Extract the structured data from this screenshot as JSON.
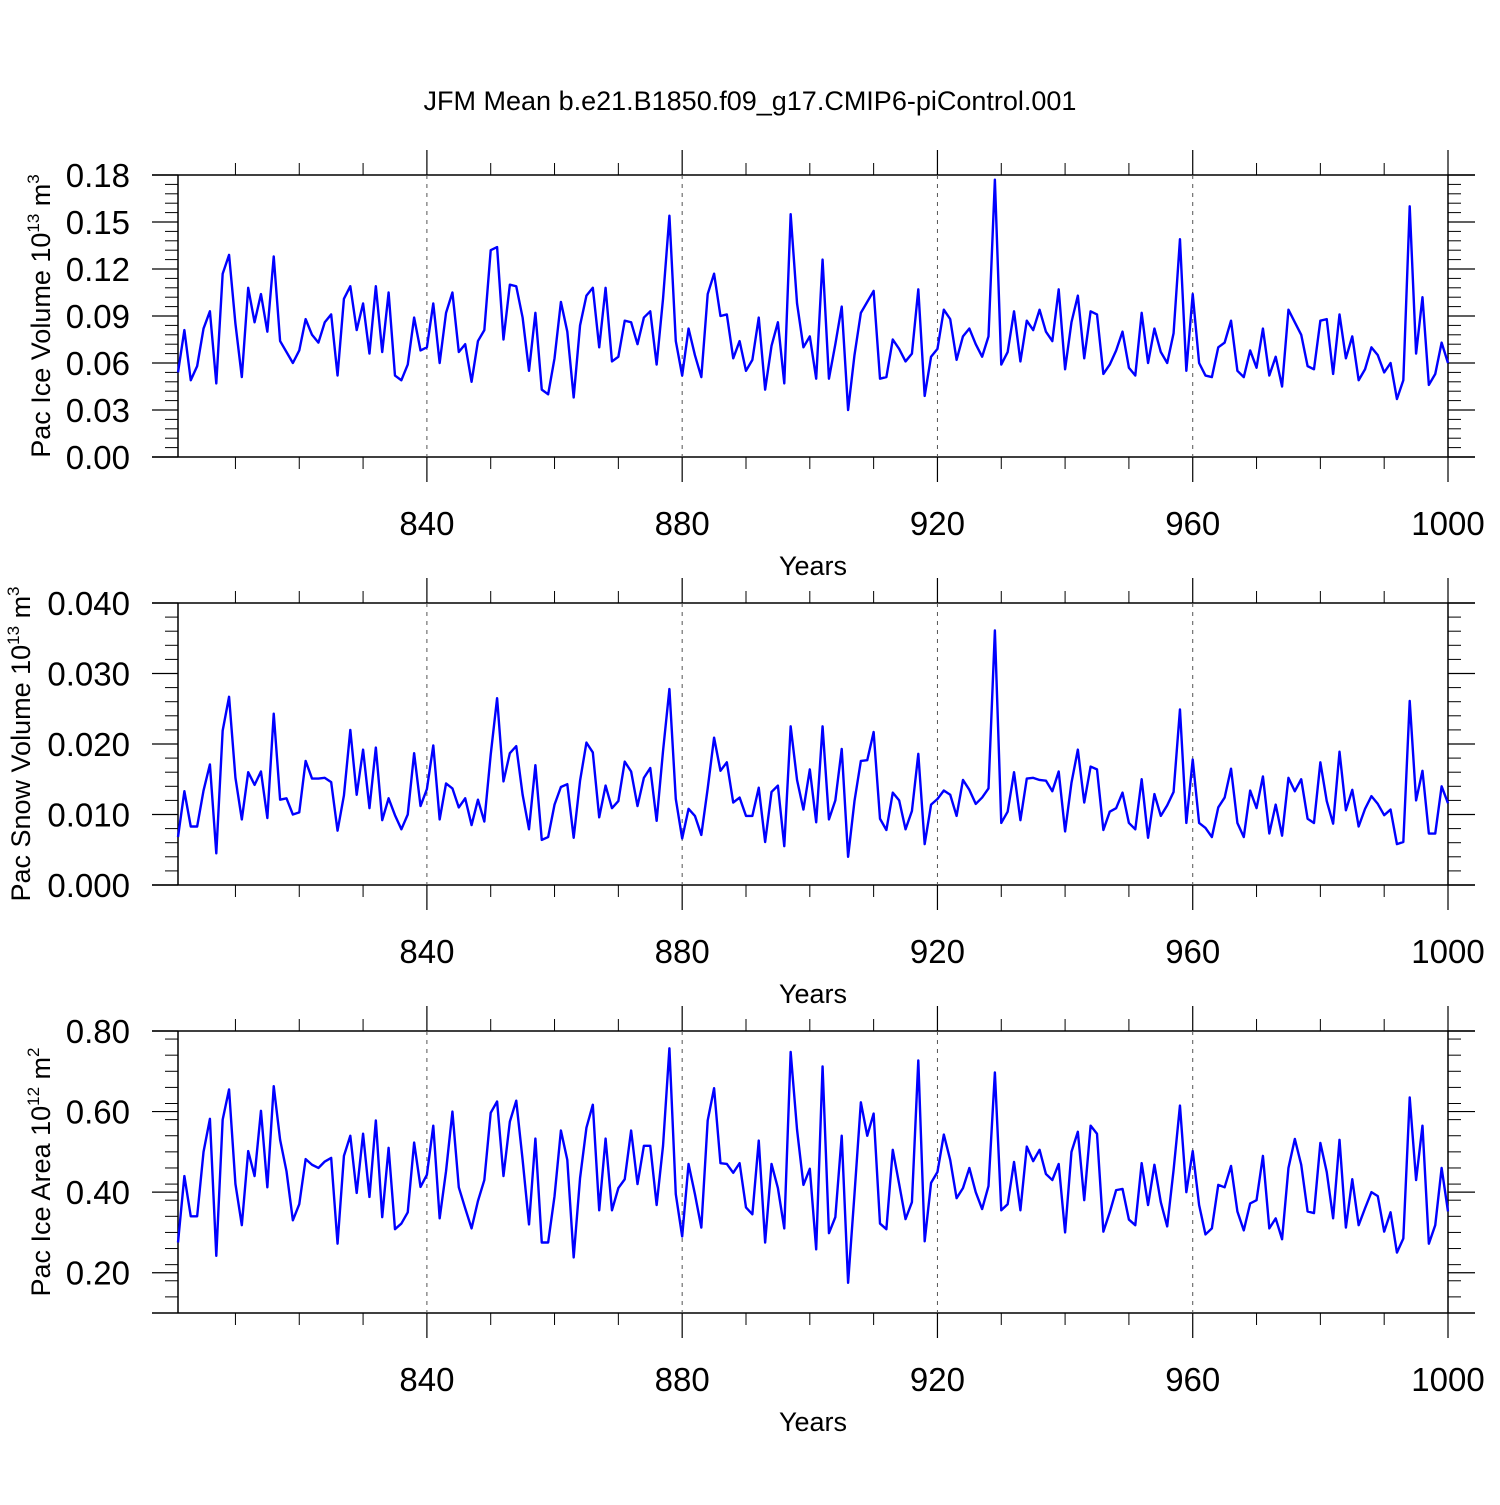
{
  "title": "JFM Mean b.e21.B1850.f09_g17.CMIP6-piControl.001",
  "chart_data": [
    {
      "type": "line",
      "title": "JFM Mean b.e21.B1850.f09_g17.CMIP6-piControl.001",
      "xlabel": "Years",
      "ylabel": "Pac Ice Volume 10",
      "ylabel_exp": "13",
      "ylabel_unit": " m",
      "ylabel_unit_exp": "3",
      "xlim": [
        801,
        1000
      ],
      "ylim": [
        0.0,
        0.18
      ],
      "xticks": [
        840,
        880,
        920,
        960,
        1000
      ],
      "xtick_labels": [
        "840",
        "880",
        "920",
        "960",
        "1000"
      ],
      "yticks": [
        0.0,
        0.03,
        0.06,
        0.09,
        0.12,
        0.15,
        0.18
      ],
      "ytick_labels": [
        "0.00",
        "0.03",
        "0.06",
        "0.09",
        "0.12",
        "0.15",
        "0.18"
      ],
      "color": "#0000ff",
      "grid": "vertical dashed lines at major x ticks",
      "x_start": 801,
      "values": [
        0.054,
        0.081,
        0.049,
        0.058,
        0.082,
        0.093,
        0.047,
        0.117,
        0.129,
        0.085,
        0.051,
        0.108,
        0.086,
        0.104,
        0.08,
        0.128,
        0.074,
        0.067,
        0.06,
        0.068,
        0.088,
        0.078,
        0.073,
        0.086,
        0.091,
        0.052,
        0.101,
        0.109,
        0.081,
        0.098,
        0.066,
        0.109,
        0.067,
        0.105,
        0.052,
        0.049,
        0.059,
        0.089,
        0.068,
        0.07,
        0.098,
        0.06,
        0.092,
        0.105,
        0.067,
        0.072,
        0.048,
        0.074,
        0.081,
        0.132,
        0.134,
        0.075,
        0.11,
        0.109,
        0.089,
        0.055,
        0.092,
        0.043,
        0.04,
        0.063,
        0.099,
        0.08,
        0.038,
        0.084,
        0.103,
        0.108,
        0.07,
        0.108,
        0.061,
        0.064,
        0.087,
        0.086,
        0.072,
        0.089,
        0.093,
        0.059,
        0.101,
        0.154,
        0.074,
        0.052,
        0.082,
        0.065,
        0.051,
        0.104,
        0.117,
        0.09,
        0.091,
        0.063,
        0.074,
        0.055,
        0.062,
        0.089,
        0.043,
        0.071,
        0.086,
        0.047,
        0.155,
        0.098,
        0.07,
        0.077,
        0.05,
        0.126,
        0.05,
        0.072,
        0.096,
        0.03,
        0.065,
        0.092,
        0.099,
        0.106,
        0.05,
        0.051,
        0.075,
        0.069,
        0.061,
        0.066,
        0.107,
        0.039,
        0.064,
        0.069,
        0.094,
        0.088,
        0.062,
        0.077,
        0.082,
        0.072,
        0.064,
        0.077,
        0.177,
        0.059,
        0.067,
        0.093,
        0.061,
        0.087,
        0.081,
        0.094,
        0.08,
        0.074,
        0.107,
        0.056,
        0.086,
        0.103,
        0.063,
        0.093,
        0.091,
        0.053,
        0.059,
        0.068,
        0.08,
        0.057,
        0.052,
        0.092,
        0.06,
        0.082,
        0.067,
        0.06,
        0.079,
        0.139,
        0.055,
        0.104,
        0.06,
        0.052,
        0.051,
        0.07,
        0.073,
        0.087,
        0.055,
        0.051,
        0.068,
        0.057,
        0.082,
        0.052,
        0.064,
        0.045,
        0.094,
        0.086,
        0.078,
        0.058,
        0.056,
        0.087,
        0.088,
        0.053,
        0.091,
        0.063,
        0.077,
        0.049,
        0.056,
        0.07,
        0.065,
        0.054,
        0.06,
        0.037,
        0.049,
        0.16,
        0.066,
        0.102,
        0.046,
        0.053,
        0.073,
        0.06
      ]
    },
    {
      "type": "line",
      "xlabel": "Years",
      "ylabel": "Pac Snow Volume 10",
      "ylabel_exp": "13",
      "ylabel_unit": " m",
      "ylabel_unit_exp": "3",
      "xlim": [
        801,
        1000
      ],
      "ylim": [
        0.0,
        0.04
      ],
      "xticks": [
        840,
        880,
        920,
        960,
        1000
      ],
      "xtick_labels": [
        "840",
        "880",
        "920",
        "960",
        "1000"
      ],
      "yticks": [
        0.0,
        0.01,
        0.02,
        0.03,
        0.04
      ],
      "ytick_labels": [
        "0.000",
        "0.010",
        "0.020",
        "0.030",
        "0.040"
      ],
      "color": "#0000ff",
      "grid": "vertical dashed lines at major x ticks",
      "x_start": 801,
      "values": [
        0.0068,
        0.0133,
        0.0083,
        0.0083,
        0.0134,
        0.0171,
        0.0045,
        0.0219,
        0.0267,
        0.0152,
        0.0093,
        0.016,
        0.0142,
        0.0161,
        0.0095,
        0.0243,
        0.0121,
        0.0123,
        0.01,
        0.0103,
        0.0176,
        0.0151,
        0.0151,
        0.0152,
        0.0146,
        0.0077,
        0.0127,
        0.022,
        0.0128,
        0.0192,
        0.0109,
        0.0195,
        0.0092,
        0.0123,
        0.0099,
        0.0079,
        0.01,
        0.0187,
        0.0112,
        0.0136,
        0.0198,
        0.0093,
        0.0144,
        0.0137,
        0.011,
        0.0123,
        0.0085,
        0.0121,
        0.009,
        0.0185,
        0.0265,
        0.0147,
        0.0187,
        0.0197,
        0.0128,
        0.0079,
        0.017,
        0.0064,
        0.0068,
        0.0114,
        0.0139,
        0.0143,
        0.0067,
        0.0148,
        0.0202,
        0.0188,
        0.0096,
        0.0141,
        0.0109,
        0.0119,
        0.0175,
        0.0161,
        0.0112,
        0.0152,
        0.0166,
        0.0091,
        0.019,
        0.0278,
        0.0122,
        0.0066,
        0.0108,
        0.0098,
        0.0071,
        0.0137,
        0.0209,
        0.0162,
        0.0174,
        0.0117,
        0.0124,
        0.0098,
        0.0098,
        0.0138,
        0.0061,
        0.0132,
        0.0141,
        0.0055,
        0.0225,
        0.0149,
        0.0107,
        0.0164,
        0.0089,
        0.0225,
        0.0093,
        0.012,
        0.0193,
        0.004,
        0.0119,
        0.0176,
        0.0177,
        0.0217,
        0.0094,
        0.0078,
        0.0131,
        0.012,
        0.0079,
        0.0105,
        0.0186,
        0.0058,
        0.0114,
        0.0122,
        0.0134,
        0.0128,
        0.0098,
        0.0149,
        0.0135,
        0.0115,
        0.0124,
        0.0137,
        0.0361,
        0.0088,
        0.0104,
        0.016,
        0.0092,
        0.0151,
        0.0152,
        0.0149,
        0.0148,
        0.0133,
        0.0161,
        0.0076,
        0.0145,
        0.0192,
        0.0117,
        0.0168,
        0.0164,
        0.0078,
        0.0104,
        0.0109,
        0.0131,
        0.0088,
        0.0079,
        0.015,
        0.0067,
        0.0129,
        0.0098,
        0.0113,
        0.0132,
        0.0249,
        0.0088,
        0.0178,
        0.0088,
        0.0081,
        0.0068,
        0.011,
        0.0124,
        0.0165,
        0.0088,
        0.0068,
        0.0134,
        0.0109,
        0.0154,
        0.0073,
        0.0114,
        0.007,
        0.0152,
        0.0133,
        0.015,
        0.0094,
        0.0088,
        0.0174,
        0.0119,
        0.0087,
        0.0189,
        0.0106,
        0.0135,
        0.0083,
        0.0108,
        0.0126,
        0.0115,
        0.0099,
        0.0107,
        0.0058,
        0.0061,
        0.0261,
        0.012,
        0.0162,
        0.0073,
        0.0073,
        0.014,
        0.0116
      ]
    },
    {
      "type": "line",
      "xlabel": "Years",
      "ylabel": "Pac Ice Area 10",
      "ylabel_exp": "12",
      "ylabel_unit": " m",
      "ylabel_unit_exp": "2",
      "xlim": [
        801,
        1000
      ],
      "ylim": [
        0.1,
        0.8
      ],
      "xticks": [
        840,
        880,
        920,
        960,
        1000
      ],
      "xtick_labels": [
        "840",
        "880",
        "920",
        "960",
        "1000"
      ],
      "yticks": [
        0.2,
        0.4,
        0.6,
        0.8
      ],
      "ytick_labels": [
        "0.20",
        "0.40",
        "0.60",
        "0.80"
      ],
      "color": "#0000ff",
      "grid": "vertical dashed lines at major x ticks",
      "x_start": 801,
      "values": [
        0.275,
        0.44,
        0.34,
        0.34,
        0.5,
        0.582,
        0.242,
        0.58,
        0.655,
        0.42,
        0.318,
        0.502,
        0.44,
        0.602,
        0.412,
        0.663,
        0.53,
        0.452,
        0.33,
        0.37,
        0.482,
        0.468,
        0.46,
        0.476,
        0.485,
        0.272,
        0.49,
        0.54,
        0.398,
        0.545,
        0.388,
        0.578,
        0.338,
        0.51,
        0.308,
        0.322,
        0.35,
        0.523,
        0.413,
        0.443,
        0.565,
        0.335,
        0.452,
        0.6,
        0.412,
        0.36,
        0.31,
        0.378,
        0.43,
        0.597,
        0.625,
        0.44,
        0.575,
        0.627,
        0.48,
        0.32,
        0.533,
        0.275,
        0.275,
        0.39,
        0.553,
        0.48,
        0.238,
        0.435,
        0.56,
        0.617,
        0.355,
        0.533,
        0.355,
        0.41,
        0.432,
        0.553,
        0.42,
        0.515,
        0.515,
        0.368,
        0.515,
        0.757,
        0.395,
        0.29,
        0.47,
        0.395,
        0.312,
        0.578,
        0.658,
        0.472,
        0.47,
        0.448,
        0.472,
        0.362,
        0.345,
        0.528,
        0.275,
        0.47,
        0.41,
        0.31,
        0.748,
        0.555,
        0.418,
        0.458,
        0.258,
        0.712,
        0.298,
        0.338,
        0.54,
        0.175,
        0.395,
        0.623,
        0.54,
        0.595,
        0.322,
        0.308,
        0.505,
        0.42,
        0.333,
        0.375,
        0.727,
        0.278,
        0.423,
        0.45,
        0.543,
        0.48,
        0.385,
        0.41,
        0.46,
        0.4,
        0.358,
        0.415,
        0.697,
        0.355,
        0.37,
        0.475,
        0.355,
        0.513,
        0.477,
        0.505,
        0.445,
        0.43,
        0.47,
        0.3,
        0.5,
        0.55,
        0.38,
        0.565,
        0.545,
        0.302,
        0.35,
        0.405,
        0.408,
        0.332,
        0.318,
        0.472,
        0.368,
        0.468,
        0.375,
        0.315,
        0.455,
        0.615,
        0.4,
        0.502,
        0.368,
        0.295,
        0.31,
        0.418,
        0.412,
        0.465,
        0.352,
        0.305,
        0.372,
        0.38,
        0.49,
        0.31,
        0.335,
        0.283,
        0.46,
        0.532,
        0.468,
        0.352,
        0.348,
        0.522,
        0.45,
        0.335,
        0.53,
        0.312,
        0.432,
        0.318,
        0.36,
        0.4,
        0.39,
        0.302,
        0.35,
        0.25,
        0.285,
        0.635,
        0.43,
        0.565,
        0.272,
        0.318,
        0.46,
        0.352
      ]
    }
  ]
}
